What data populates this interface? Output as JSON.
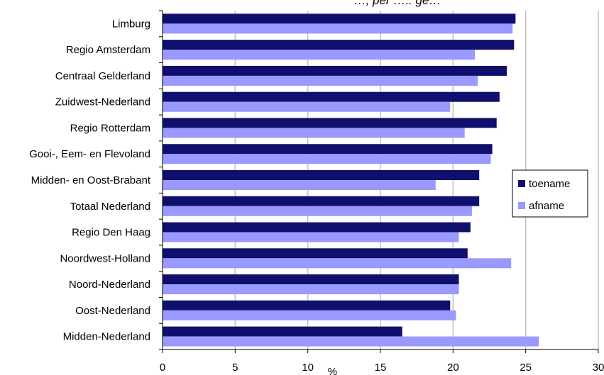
{
  "chart_data": {
    "type": "bar",
    "orientation": "horizontal",
    "title_visible_fragment": "…, per ….. ge…",
    "xlabel": "%",
    "ylabel": "",
    "xlim": [
      0,
      30
    ],
    "xticks": [
      "0",
      "5",
      "10",
      "15",
      "20",
      "25",
      "30"
    ],
    "grid": "vertical gridlines",
    "legend_position": "right",
    "categories": [
      "Limburg",
      "Regio Amsterdam",
      "Centraal Gelderland",
      "Zuidwest-Nederland",
      "Regio Rotterdam",
      "Gooi-, Eem- en Flevoland",
      "Midden- en Oost-Brabant",
      "Totaal Nederland",
      "Regio Den Haag",
      "Noordwest-Holland",
      "Noord-Nederland",
      "Oost-Nederland",
      "Midden-Nederland"
    ],
    "series": [
      {
        "name": "toename",
        "color": "#0f0f6e",
        "values": [
          24.3,
          24.2,
          23.7,
          23.2,
          23.0,
          22.7,
          21.8,
          21.8,
          21.2,
          21.0,
          20.4,
          19.8,
          16.5
        ]
      },
      {
        "name": "afname",
        "color": "#9999ff",
        "values": [
          24.1,
          21.5,
          21.7,
          19.8,
          20.8,
          22.6,
          18.8,
          21.3,
          20.4,
          24.0,
          20.4,
          20.2,
          25.9
        ]
      }
    ]
  }
}
